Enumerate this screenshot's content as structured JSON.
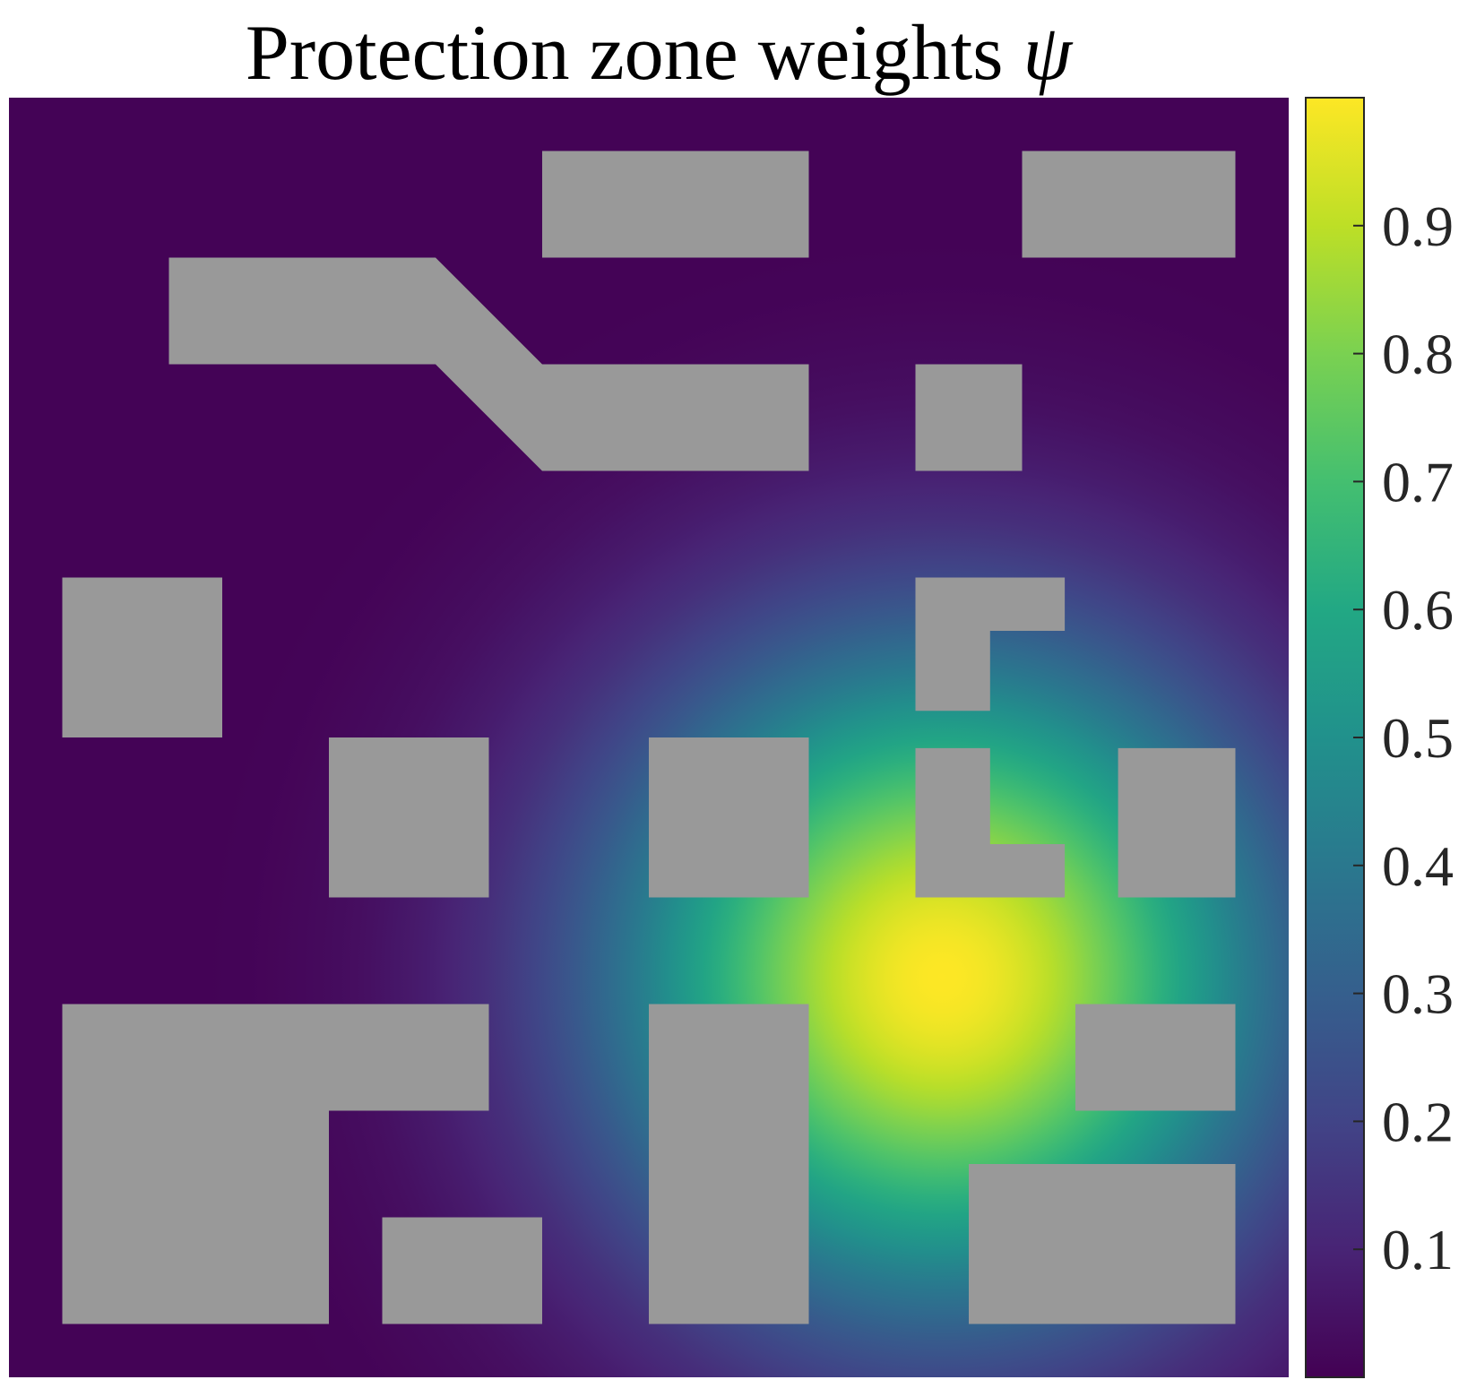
{
  "chart_data": {
    "type": "heatmap",
    "title": "Protection zone weights",
    "title_symbol": "ψ",
    "colormap": "viridis",
    "colorbar": {
      "ticks": [
        0.1,
        0.2,
        0.3,
        0.4,
        0.5,
        0.6,
        0.7,
        0.8,
        0.9
      ],
      "tick_labels": [
        "0.1",
        "0.2",
        "0.3",
        "0.4",
        "0.5",
        "0.6",
        "0.7",
        "0.8",
        "0.9"
      ],
      "range": [
        0.0,
        1.0
      ]
    },
    "field": {
      "description": "Gaussian weight field",
      "peak_value": 1.0,
      "peak_location": [
        17.5,
        7.5
      ],
      "sigma": 4.3,
      "domain": [
        [
          0,
          24
        ],
        [
          0,
          24
        ]
      ]
    },
    "obstacle_color": "#999999",
    "obstacles": [
      {
        "points": [
          [
            10,
            23
          ],
          [
            15,
            23
          ],
          [
            15,
            21
          ],
          [
            10,
            21
          ]
        ]
      },
      {
        "points": [
          [
            19,
            23
          ],
          [
            23,
            23
          ],
          [
            23,
            21
          ],
          [
            19,
            21
          ]
        ]
      },
      {
        "points": [
          [
            3,
            21
          ],
          [
            8,
            21
          ],
          [
            10,
            19
          ],
          [
            15,
            19
          ],
          [
            15,
            17
          ],
          [
            10,
            17
          ],
          [
            8,
            19
          ],
          [
            3,
            19
          ]
        ]
      },
      {
        "points": [
          [
            17,
            19
          ],
          [
            19,
            19
          ],
          [
            19,
            17
          ],
          [
            17,
            17
          ]
        ]
      },
      {
        "points": [
          [
            1,
            15
          ],
          [
            4,
            15
          ],
          [
            4,
            12
          ],
          [
            1,
            12
          ]
        ]
      },
      {
        "points": [
          [
            17,
            15
          ],
          [
            19.8,
            15
          ],
          [
            19.8,
            14
          ],
          [
            18.4,
            14
          ],
          [
            18.4,
            12.5
          ],
          [
            17,
            12.5
          ]
        ]
      },
      {
        "points": [
          [
            6,
            12
          ],
          [
            9,
            12
          ],
          [
            9,
            9
          ],
          [
            6,
            9
          ]
        ]
      },
      {
        "points": [
          [
            12,
            12
          ],
          [
            15,
            12
          ],
          [
            15,
            9
          ],
          [
            12,
            9
          ]
        ]
      },
      {
        "points": [
          [
            17,
            11.8
          ],
          [
            18.4,
            11.8
          ],
          [
            18.4,
            10
          ],
          [
            19.8,
            10
          ],
          [
            19.8,
            9
          ],
          [
            17,
            9
          ]
        ]
      },
      {
        "points": [
          [
            20.8,
            11.8
          ],
          [
            23,
            11.8
          ],
          [
            23,
            9
          ],
          [
            20.8,
            9
          ]
        ]
      },
      {
        "points": [
          [
            1,
            7
          ],
          [
            9,
            7
          ],
          [
            9,
            5
          ],
          [
            6,
            5
          ],
          [
            6,
            1
          ],
          [
            1,
            1
          ]
        ]
      },
      {
        "points": [
          [
            12,
            7
          ],
          [
            15,
            7
          ],
          [
            15,
            1
          ],
          [
            12,
            1
          ]
        ]
      },
      {
        "points": [
          [
            20,
            7
          ],
          [
            23,
            7
          ],
          [
            23,
            5
          ],
          [
            20,
            5
          ]
        ]
      },
      {
        "points": [
          [
            7,
            3
          ],
          [
            10,
            3
          ],
          [
            10,
            1
          ],
          [
            7,
            1
          ]
        ]
      },
      {
        "points": [
          [
            18,
            4
          ],
          [
            23,
            4
          ],
          [
            23,
            1
          ],
          [
            18,
            1
          ]
        ]
      }
    ]
  }
}
